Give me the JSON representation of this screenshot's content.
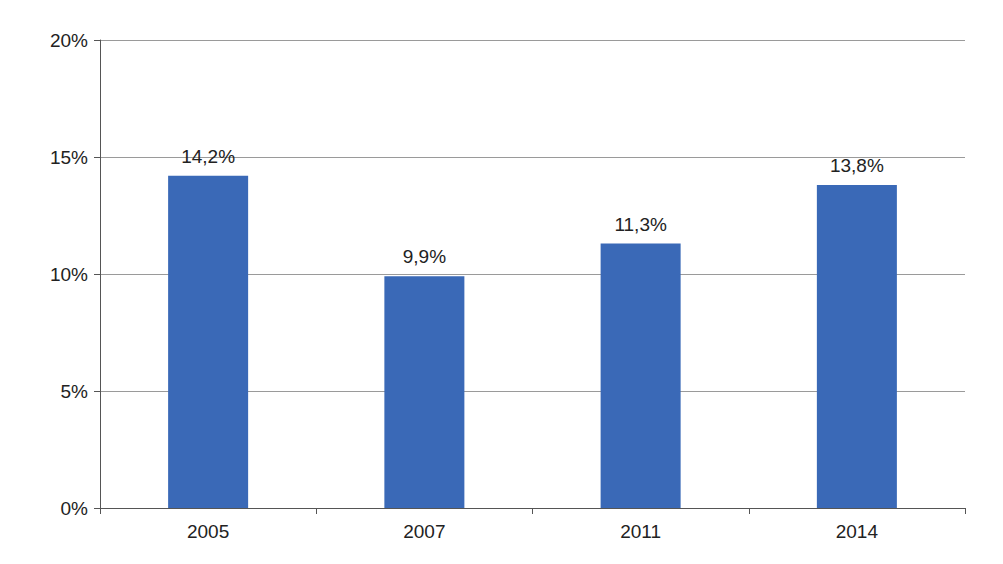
{
  "chart_data": {
    "type": "bar",
    "categories": [
      "2005",
      "2007",
      "2011",
      "2014"
    ],
    "values": [
      14.2,
      9.9,
      11.3,
      13.8
    ],
    "value_labels": [
      "14,2%",
      "9,9%",
      "11,3%",
      "13,8%"
    ],
    "data_labels": true,
    "color": "#3a69b7",
    "ylim": [
      0,
      20
    ],
    "yticks": [
      {
        "value": 0,
        "label": "0%"
      },
      {
        "value": 5,
        "label": "5%"
      },
      {
        "value": 10,
        "label": "10%"
      },
      {
        "value": 15,
        "label": "15%"
      },
      {
        "value": 20,
        "label": "20%"
      }
    ],
    "grid": true
  }
}
